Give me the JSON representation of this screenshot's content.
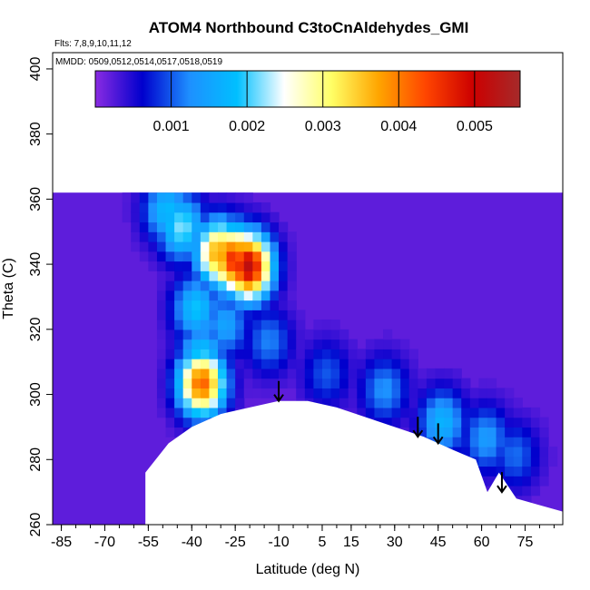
{
  "chart_data": {
    "type": "heatmap",
    "title": "ATOM4 Northbound C3toCnAldehydes_GMI",
    "annotations": {
      "flights": "Flts: 7,8,9,10,11,12",
      "dates": "MMDD: 0509,0512,0514,0517,0518,0519"
    },
    "xlabel": "Latitude (deg N)",
    "ylabel": "Theta (C)",
    "xlim": [
      -88,
      88
    ],
    "ylim": [
      260,
      405
    ],
    "x_ticks": [
      -85,
      -70,
      -55,
      -40,
      -25,
      -10,
      5,
      15,
      30,
      45,
      60,
      75
    ],
    "x_tick_labels": [
      "-85",
      "-70",
      "-55",
      "-40",
      "-25",
      "-10",
      "5",
      "15",
      "30",
      "45",
      "60",
      "75"
    ],
    "y_ticks": [
      260,
      280,
      300,
      320,
      340,
      360,
      380,
      400
    ],
    "y_tick_labels": [
      "260",
      "280",
      "300",
      "320",
      "340",
      "360",
      "380",
      "400"
    ],
    "colorbar": {
      "range": [
        0,
        0.0056
      ],
      "ticks": [
        0.001,
        0.002,
        0.003,
        0.004,
        0.005
      ],
      "tick_labels": [
        "0.001",
        "0.002",
        "0.003",
        "0.004",
        "0.005"
      ],
      "colors": [
        "#8a2be2",
        "#0000cd",
        "#1e90ff",
        "#00bfff",
        "#ffffff",
        "#ffff66",
        "#ffa500",
        "#ff4500",
        "#cc0000",
        "#a52a2a"
      ]
    },
    "background_value": 0.0002,
    "field_lat_range": [
      -88,
      88
    ],
    "field_theta_top": 362,
    "hotspots": [
      {
        "lat": -27,
        "theta": 340,
        "value": 0.0046
      },
      {
        "lat": -22,
        "theta": 338,
        "value": 0.0052
      },
      {
        "lat": -32,
        "theta": 342,
        "value": 0.0038
      },
      {
        "lat": -45,
        "theta": 350,
        "value": 0.0022
      },
      {
        "lat": -50,
        "theta": 355,
        "value": 0.0018
      },
      {
        "lat": -38,
        "theta": 302,
        "value": 0.0042
      },
      {
        "lat": -38,
        "theta": 310,
        "value": 0.002
      },
      {
        "lat": -40,
        "theta": 325,
        "value": 0.0019
      },
      {
        "lat": -30,
        "theta": 320,
        "value": 0.0015
      },
      {
        "lat": -15,
        "theta": 315,
        "value": 0.0012
      },
      {
        "lat": 5,
        "theta": 305,
        "value": 0.001
      },
      {
        "lat": 25,
        "theta": 300,
        "value": 0.0013
      },
      {
        "lat": 45,
        "theta": 290,
        "value": 0.0017
      },
      {
        "lat": 60,
        "theta": 285,
        "value": 0.0014
      },
      {
        "lat": 70,
        "theta": 280,
        "value": 0.0011
      }
    ],
    "terrain_mask": [
      [
        -88,
        260
      ],
      [
        -56,
        260
      ],
      [
        -56,
        276
      ],
      [
        -48,
        285
      ],
      [
        -40,
        290
      ],
      [
        -30,
        294
      ],
      [
        -20,
        296
      ],
      [
        -10,
        298
      ],
      [
        0,
        298
      ],
      [
        10,
        296
      ],
      [
        20,
        293
      ],
      [
        30,
        290
      ],
      [
        40,
        287
      ],
      [
        50,
        283
      ],
      [
        58,
        280
      ],
      [
        62,
        270
      ],
      [
        66,
        276
      ],
      [
        72,
        268
      ],
      [
        80,
        266
      ],
      [
        88,
        264
      ],
      [
        88,
        260
      ]
    ],
    "arrows": [
      {
        "lat": -10,
        "theta": 298
      },
      {
        "lat": 38,
        "theta": 287
      },
      {
        "lat": 45,
        "theta": 285
      },
      {
        "lat": 67,
        "theta": 270
      }
    ]
  }
}
